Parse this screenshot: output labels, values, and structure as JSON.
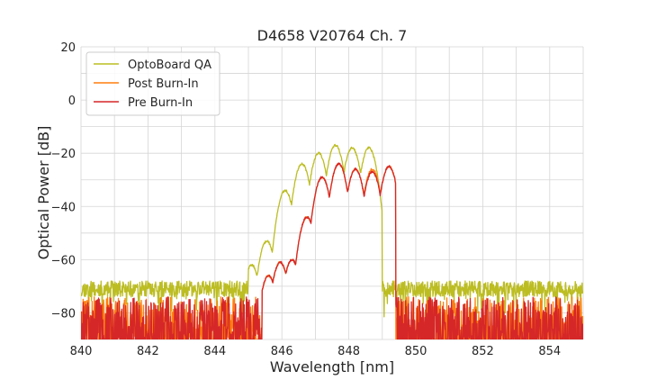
{
  "chart_data": {
    "type": "line",
    "title": "D4658 V20764 Ch. 7",
    "xlabel": "Wavelength [nm]",
    "ylabel": "Optical Power [dB]",
    "xlim": [
      840,
      855
    ],
    "ylim": [
      -90,
      20
    ],
    "xticks": [
      "840",
      "842",
      "844",
      "846",
      "848",
      "850",
      "852",
      "854"
    ],
    "yticks": [
      "20",
      "0",
      "−20",
      "−40",
      "−60",
      "−80"
    ],
    "xtick_values": [
      840,
      842,
      844,
      846,
      848,
      850,
      852,
      854
    ],
    "ytick_values": [
      20,
      0,
      -20,
      -40,
      -60,
      -80
    ],
    "grid": true,
    "legend_position": "top-left",
    "series": [
      {
        "name": "OptoBoard QA",
        "color": "#bcbd22",
        "noise_floor": -72,
        "peaks": [
          [
            845.1,
            -62
          ],
          [
            845.55,
            -53
          ],
          [
            846.1,
            -34
          ],
          [
            846.6,
            -24
          ],
          [
            847.1,
            -20
          ],
          [
            847.6,
            -17
          ],
          [
            848.1,
            -18
          ],
          [
            848.6,
            -18
          ]
        ],
        "band": [
          845.0,
          849.0
        ]
      },
      {
        "name": "Post Burn-In",
        "color": "#ff7f0e",
        "noise_floor": -80,
        "peaks": [
          [
            845.6,
            -66
          ],
          [
            845.95,
            -61
          ],
          [
            846.3,
            -60
          ],
          [
            846.75,
            -44
          ],
          [
            847.2,
            -29
          ],
          [
            847.7,
            -24
          ],
          [
            848.2,
            -26
          ],
          [
            848.7,
            -26
          ],
          [
            849.2,
            -25
          ]
        ],
        "band": [
          845.4,
          849.4
        ]
      },
      {
        "name": "Pre Burn-In",
        "color": "#d62728",
        "noise_floor": -80,
        "peaks": [
          [
            845.6,
            -66
          ],
          [
            845.95,
            -61
          ],
          [
            846.3,
            -60
          ],
          [
            846.75,
            -44
          ],
          [
            847.2,
            -29
          ],
          [
            847.7,
            -24
          ],
          [
            848.2,
            -26
          ],
          [
            848.7,
            -27
          ],
          [
            849.2,
            -25
          ]
        ],
        "band": [
          845.4,
          849.4
        ]
      }
    ]
  }
}
